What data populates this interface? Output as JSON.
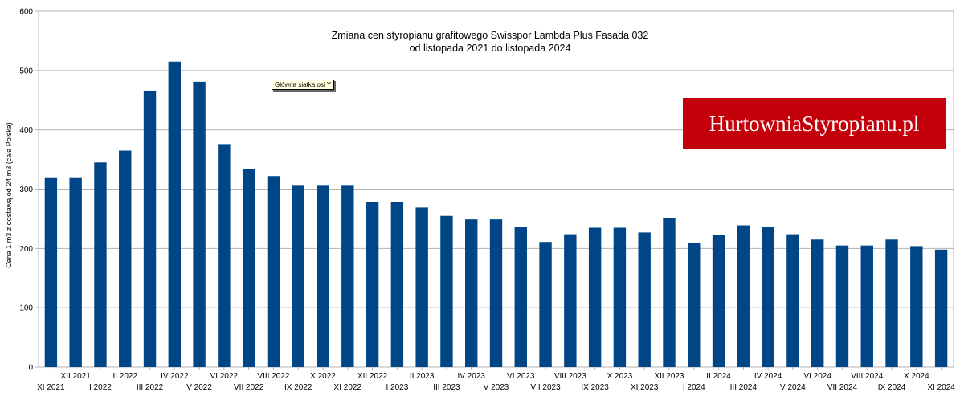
{
  "chart_data": {
    "type": "bar",
    "title": [
      "Zmiana cen styropianu grafitowego Swisspor Lambda Plus Fasada 032",
      "od listopada 2021 do listopada 2024"
    ],
    "xlabel": "",
    "ylabel": "Cena 1 m3 z dostawą od 24 m3 (cała Polska)",
    "ylim": [
      0,
      600
    ],
    "yticks": [
      0,
      100,
      200,
      300,
      400,
      500,
      600
    ],
    "grid": true,
    "categories": [
      "XI 2021",
      "XII 2021",
      "I 2022",
      "II 2022",
      "III 2022",
      "IV 2022",
      "V 2022",
      "VI 2022",
      "VII 2022",
      "VIII 2022",
      "IX 2022",
      "X 2022",
      "XI 2022",
      "XII 2022",
      "I 2023",
      "II 2023",
      "III 2023",
      "IV 2023",
      "V 2023",
      "VI 2023",
      "VII 2023",
      "VIII 2023",
      "IX 2023",
      "X 2023",
      "XI 2023",
      "XII 2023",
      "I 2024",
      "II 2024",
      "III 2024",
      "IV 2024",
      "V 2024",
      "VI 2024",
      "VII 2024",
      "VIII 2024",
      "IX 2024",
      "X 2024",
      "XI 2024"
    ],
    "values": [
      320,
      320,
      345,
      365,
      466,
      515,
      481,
      376,
      334,
      322,
      307,
      307,
      307,
      279,
      279,
      269,
      255,
      249,
      249,
      236,
      211,
      224,
      235,
      235,
      227,
      251,
      210,
      223,
      239,
      237,
      224,
      215,
      205,
      205,
      215,
      204,
      198
    ],
    "bar_color": "#004586"
  },
  "tooltip": "Główna siatka osi Y",
  "brand": "HurtowniaStyropianu.pl"
}
